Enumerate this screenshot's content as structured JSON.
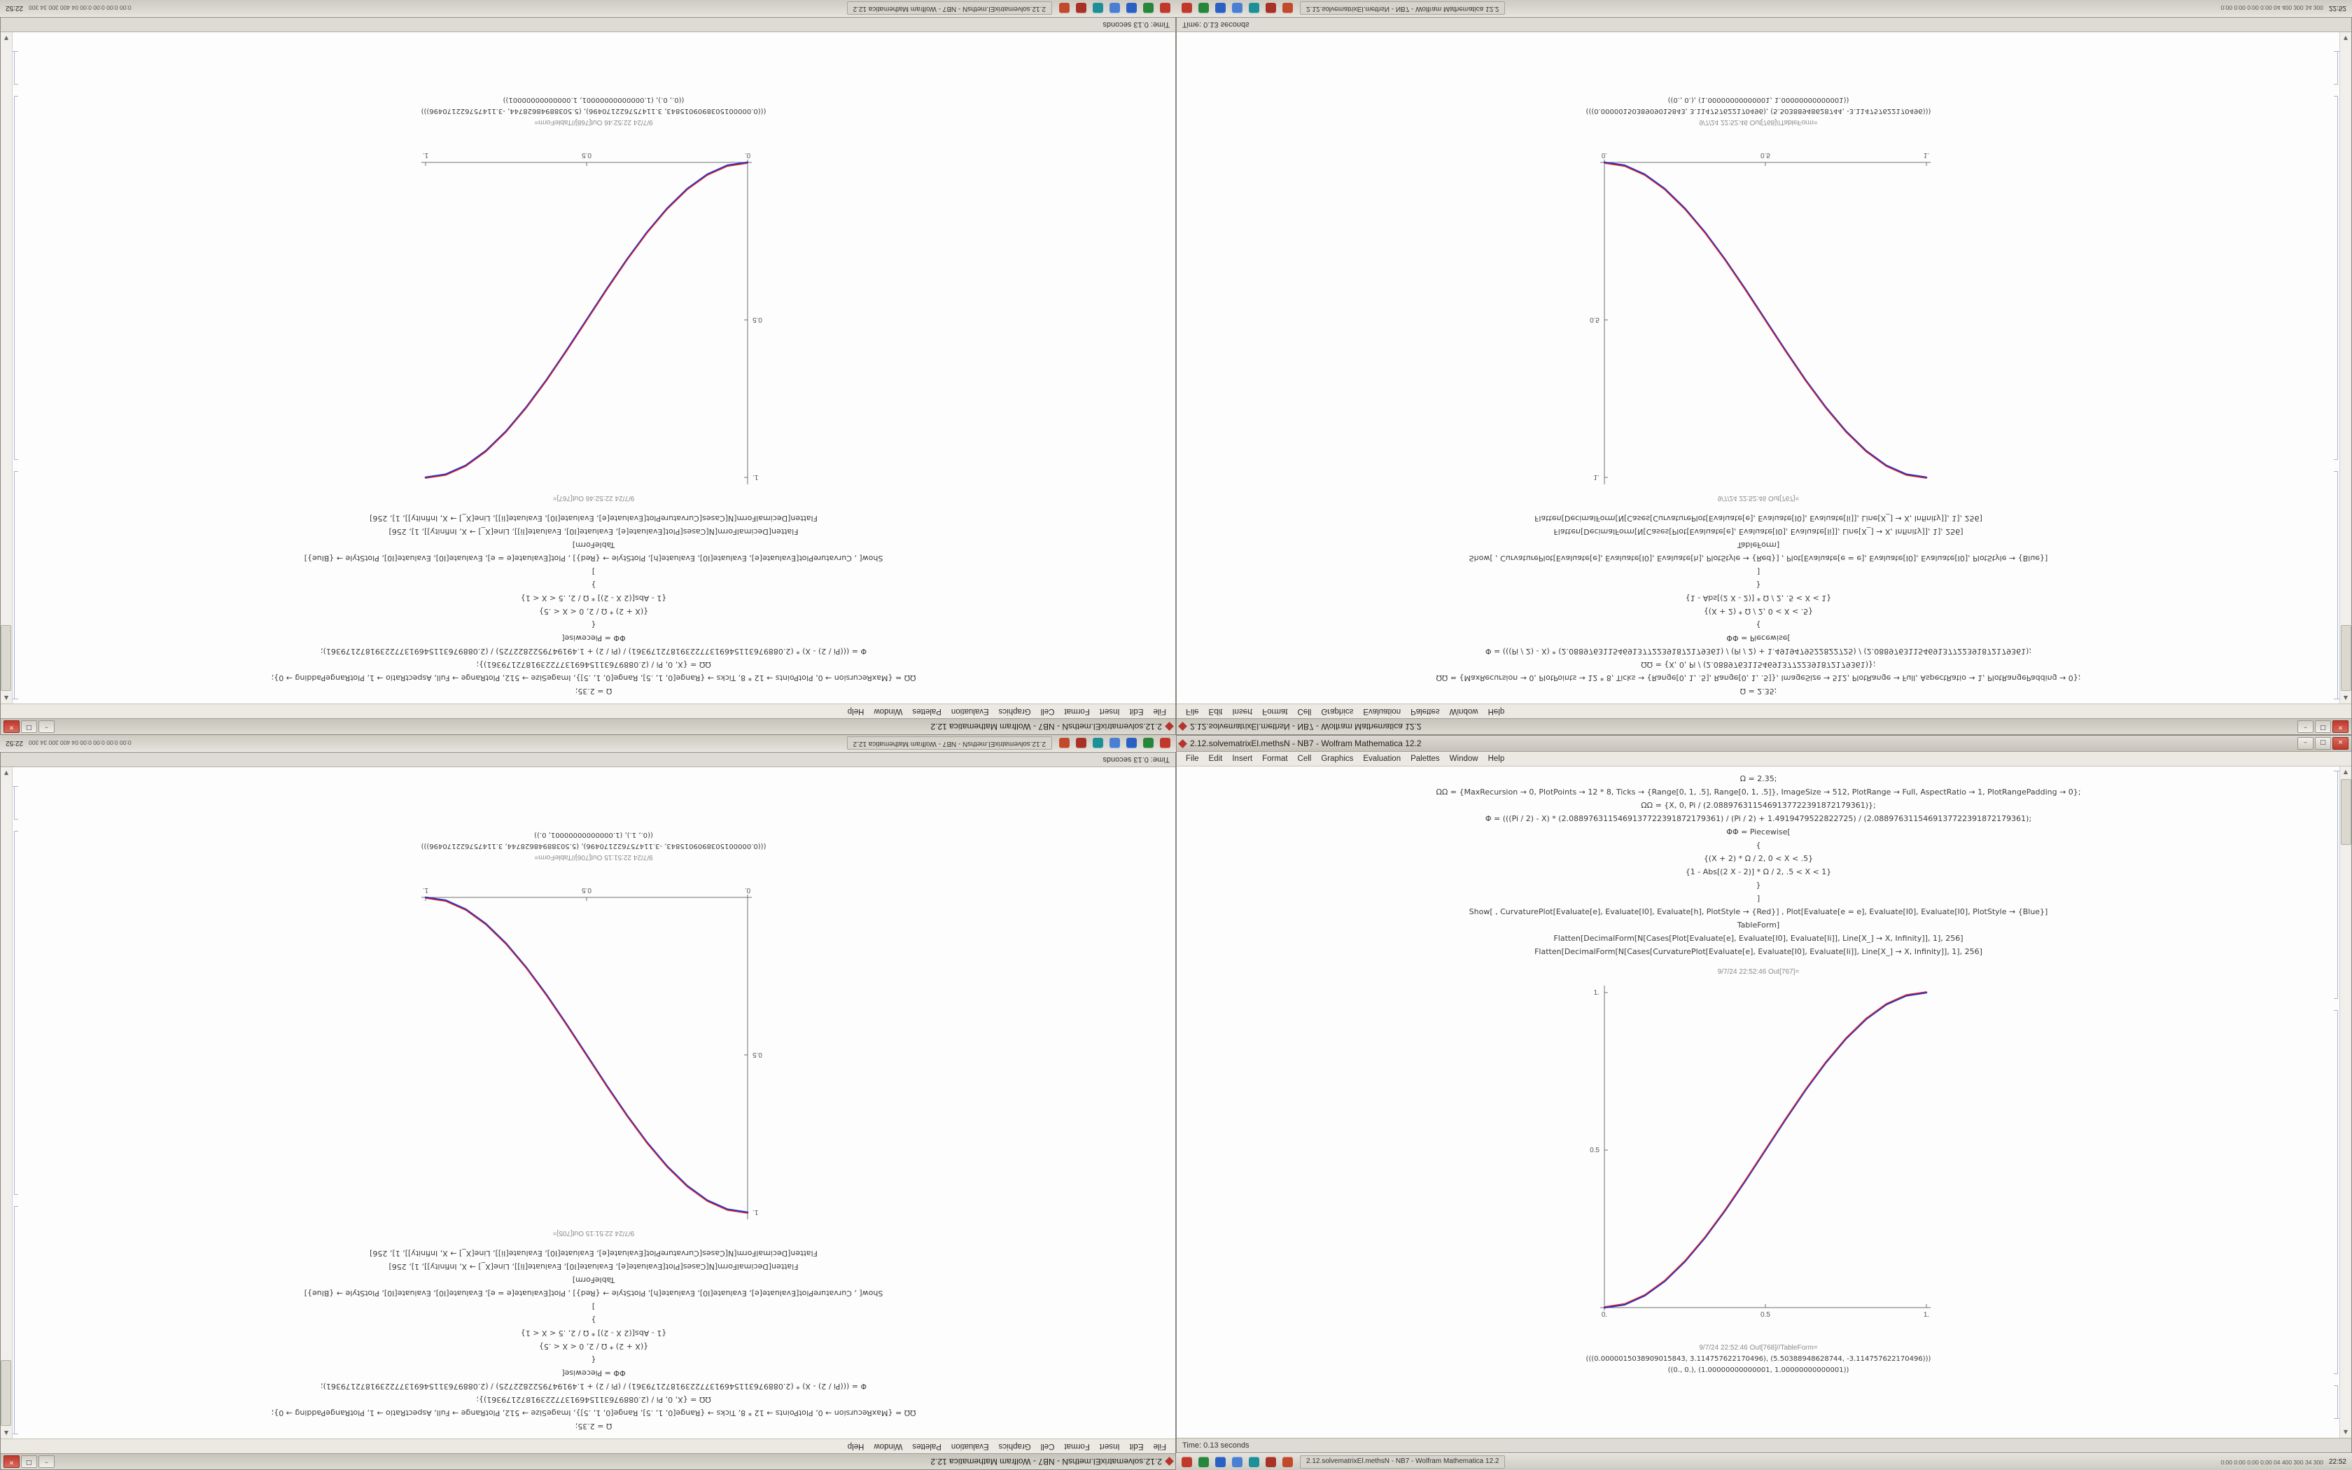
{
  "window": {
    "title": "2.12.solvematrixEl.methsN - NB7 - Wolfram Mathematica 12.2",
    "controls": [
      {
        "name": "minimize",
        "glyph": "–"
      },
      {
        "name": "maximize",
        "glyph": "□"
      },
      {
        "name": "close",
        "glyph": "×"
      }
    ]
  },
  "menu": {
    "items": [
      "File",
      "Edit",
      "Insert",
      "Format",
      "Cell",
      "Graphics",
      "Evaluation",
      "Palettes",
      "Window",
      "Help"
    ]
  },
  "status": {
    "time_text": "Time: 0.13 seconds"
  },
  "scrollbar": {
    "up": "▲",
    "down": "▼"
  },
  "taskbar": {
    "app_button": "2.12.solvematrixEl.methsN - NB7 - Wolfram Mathematica 12.2",
    "tray_text": "0:00  0:00  0:00  0:00   04 400 300 34 300",
    "clock": "22:52",
    "icons": [
      {
        "name": "app-icon-red",
        "color": "#c0392b"
      },
      {
        "name": "app-icon-green",
        "color": "#27863b"
      },
      {
        "name": "app-icon-blue",
        "color": "#2a5fc4"
      },
      {
        "name": "app-icon-lightblue",
        "color": "#4a7fd4"
      },
      {
        "name": "app-icon-teal",
        "color": "#1d8f96"
      },
      {
        "name": "app-icon-darkred",
        "color": "#a93226"
      },
      {
        "name": "app-icon-red2",
        "color": "#c24a2b"
      }
    ]
  },
  "notebooks": {
    "A": {
      "code_lines": [
        "Ω = 2.35;",
        "ΩΩ = {MaxRecursion → 0, PlotPoints → 12 * 8, Ticks → {Range[0, 1, .5], Range[0, 1, .5]}, ImageSize → 512, PlotRange → Full, AspectRatio → 1, PlotRangePadding → 0};",
        "ΩΩ = {X, 0, Pi / (2.0889763115469137722391872179361)};",
        "Φ = (((Pi / 2) - X) * (2.0889763115469137722391872179361) / (Pi / 2) + 1.4919479522822725) / (2.0889763115469137722391872179361);",
        "ΦΦ = Piecewise[",
        "{",
        "{(X + 2) * Ω / 2, 0 < X < .5}",
        "{1 - Abs[(2 X - 2)] * Ω / 2, .5 < X < 1}",
        "}",
        "]",
        "Show[ , CurvaturePlot[Evaluate[e], Evaluate[I0], Evaluate[h], PlotStyle → {Red}] ,  Plot[Evaluate[e = e], Evaluate[I0], Evaluate[I0], PlotStyle → {Blue}]",
        "TableForm]",
        "Flatten[DecimalForm[N[Cases[Plot[Evaluate[e], Evaluate[I0], Evaluate[Ii]], Line[X_] → X, Infinity]], 1], 256]",
        "Flatten[DecimalForm[N[Cases[CurvaturePlot[Evaluate[e], Evaluate[I0], Evaluate[Ii]], Line[X_] → X, Infinity]], 1], 256]"
      ],
      "out_plot_label": "9/7/24 22:52:46 Out[767]=",
      "out_table_label": "9/7/24 22:52:46 Out[768]//TableForm=",
      "out_table_lines": [
        "(((0.0000015038909015843, 3.114757622170496), (5.50388948628744, -3.114757622170496)))",
        "((0., 0.), (1.00000000000001, 1.00000000000001))"
      ],
      "chart_data": {
        "type": "line",
        "title": "",
        "xlabel": "",
        "ylabel": "",
        "xlim": [
          0,
          1
        ],
        "ylim": [
          0,
          1
        ],
        "x": [
          0,
          0.0625,
          0.125,
          0.1875,
          0.25,
          0.3125,
          0.375,
          0.4375,
          0.5,
          0.5625,
          0.625,
          0.6875,
          0.75,
          0.8125,
          0.875,
          0.9375,
          1
        ],
        "y": [
          0,
          0.0096,
          0.0381,
          0.0843,
          0.1464,
          0.2222,
          0.3087,
          0.4024,
          0.5,
          0.5976,
          0.6913,
          0.7778,
          0.8536,
          0.9157,
          0.9619,
          0.9904,
          1
        ],
        "xticks": [
          [
            0,
            "0."
          ],
          [
            0.5,
            "0.5"
          ],
          [
            1,
            "1."
          ]
        ],
        "yticks": [
          [
            0.5,
            "0.5"
          ],
          [
            1,
            "1."
          ]
        ],
        "series": [
          {
            "name": "CurvaturePlot (Red)",
            "color": "#dd2222"
          },
          {
            "name": "Plot (Blue)",
            "color": "#2233cc"
          }
        ]
      }
    },
    "B": {
      "code_lines": [
        "Ω = 2.35;",
        "ΩΩ = {MaxRecursion → 0, PlotPoints → 12 * 8, Ticks → {Range[0, 1, .5], Range[0, 1, .5]}, ImageSize → 512, PlotRange → Full, AspectRatio → 1, PlotRangePadding → 0};",
        "ΩΩ = {X, 0, Pi / (2.0889763115469137722391872179361)};",
        "Φ = (((Pi / 2) - X) * (2.0889763115469137722391872179361) / (Pi / 2) + 1.4919479522822725) / (2.0889763115469137722391872179361);",
        "ΦΦ = Piecewise[",
        "{",
        "{(X + 2) * Ω / 2, 0 < X < .5}",
        "{1 - Abs[(2 X - 2)] * Ω / 2, .5 < X < 1}",
        "}",
        "]",
        "Show[ , CurvaturePlot[Evaluate[e], Evaluate[I0], Evaluate[h], PlotStyle → {Red}] ,  Plot[Evaluate[e = e], Evaluate[I0], Evaluate[I0], PlotStyle → {Blue}]",
        "TableForm]",
        "Flatten[DecimalForm[N[Cases[Plot[Evaluate[e], Evaluate[I0], Evaluate[Ii]], Line[X_] → X, Infinity]], 1], 256]",
        "Flatten[DecimalForm[N[Cases[CurvaturePlot[Evaluate[e], Evaluate[I0], Evaluate[Ii]], Line[X_] → X, Infinity]], 1], 256]"
      ],
      "out_plot_label": "9/7/24 22:51:15 Out[705]=",
      "out_table_label": "9/7/24 22:51:15 Out[706]//TableForm=",
      "out_table_lines": [
        "(((0.0000015038909015843, -3.114757622170496), (5.50388948628744, 3.114757622170496)))",
        "((0., 1.), (1.00000000000001, 0.))"
      ],
      "chart_data": {
        "type": "line",
        "title": "",
        "xlabel": "",
        "ylabel": "",
        "xlim": [
          0,
          1
        ],
        "ylim": [
          0,
          1
        ],
        "x": [
          0,
          0.0625,
          0.125,
          0.1875,
          0.25,
          0.3125,
          0.375,
          0.4375,
          0.5,
          0.5625,
          0.625,
          0.6875,
          0.75,
          0.8125,
          0.875,
          0.9375,
          1
        ],
        "y": [
          1,
          0.9904,
          0.9619,
          0.9157,
          0.8536,
          0.7778,
          0.6913,
          0.5976,
          0.5,
          0.4024,
          0.3087,
          0.2222,
          0.1464,
          0.0843,
          0.0381,
          0.0096,
          0
        ],
        "xticks": [
          [
            0,
            "0."
          ],
          [
            0.5,
            "0.5"
          ],
          [
            1,
            "1."
          ]
        ],
        "yticks": [
          [
            0.5,
            "0.5"
          ],
          [
            1,
            "1."
          ]
        ],
        "series": [
          {
            "name": "CurvaturePlot (Red)",
            "color": "#dd2222"
          },
          {
            "name": "Plot (Blue)",
            "color": "#2233cc"
          }
        ]
      }
    }
  },
  "quadrants": [
    {
      "id": "top-left",
      "orientation": "rotated-180",
      "variant": "A"
    },
    {
      "id": "top-right",
      "orientation": "flipped-vertical",
      "variant": "A"
    },
    {
      "id": "bottom-left",
      "orientation": "rotated-180",
      "variant": "B"
    },
    {
      "id": "bottom-right",
      "orientation": "normal",
      "variant": "A"
    }
  ]
}
